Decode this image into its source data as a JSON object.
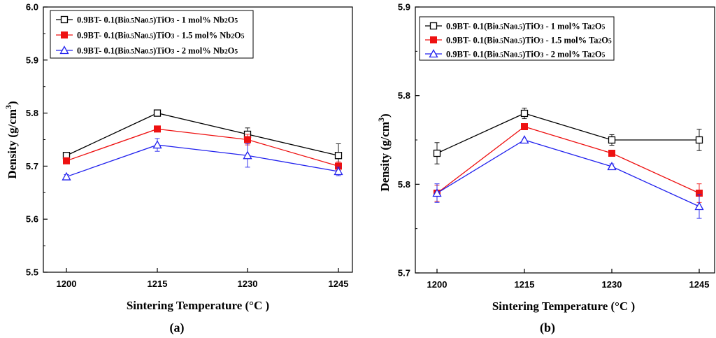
{
  "chart_data": [
    {
      "type": "line",
      "panel_label": "(a)",
      "categories": [
        "1200",
        "1215",
        "1230",
        "1245"
      ],
      "xlabel": "Sintering Temperature (°C )",
      "ylabel_main": "Density  (g/cm",
      "ylabel_sup": "3",
      "ylabel_close": ")",
      "ylim": [
        5.5,
        6.0
      ],
      "yticks": [
        "5.5",
        "5.6",
        "5.7",
        "5.8",
        "5.9",
        "6.0"
      ],
      "legend_position": "top-left",
      "series": [
        {
          "name": "0.9BT- 0.1(Bi0.5Na0.5)TiO3 - 1 mol% Nb2O5",
          "legend": {
            "pre": "0.9BT- 0.1(Bi",
            "s1": "0.5",
            "mid1": "Na",
            "s2": "0.5",
            "mid2": ")TiO",
            "s3": "3",
            "post": " - 1 mol% Nb",
            "s4": "2",
            "post2": "O",
            "s5": "5"
          },
          "color": "#000000",
          "marker": "square-open",
          "values": [
            5.72,
            5.8,
            5.76,
            5.72
          ],
          "errors": [
            0,
            0,
            0.012,
            0.022
          ]
        },
        {
          "name": "0.9BT- 0.1(Bi0.5Na0.5)TiO3 - 1.5 mol% Nb2O5",
          "legend": {
            "pre": "0.9BT- 0.1(Bi",
            "s1": "0.5",
            "mid1": "Na",
            "s2": "0.5",
            "mid2": ")TiO",
            "s3": "3",
            "post": " - 1.5 mol% Nb",
            "s4": "2",
            "post2": "O",
            "s5": "5"
          },
          "color": "#ee1111",
          "marker": "square-filled",
          "values": [
            5.71,
            5.77,
            5.75,
            5.7
          ],
          "errors": [
            0,
            0,
            0.01,
            0.008
          ]
        },
        {
          "name": "0.9BT- 0.1(Bi0.5Na0.5)TiO3 - 2 mol% Nb2O5",
          "legend": {
            "pre": "0.9BT- 0.1(Bi",
            "s1": "0.5",
            "mid1": "Na",
            "s2": "0.5",
            "mid2": ")TiO",
            "s3": "3",
            "post": " - 2 mol% Nb",
            "s4": "2",
            "post2": "O",
            "s5": "5"
          },
          "color": "#2222ee",
          "marker": "triangle-open",
          "values": [
            5.68,
            5.74,
            5.72,
            5.69
          ],
          "errors": [
            0.004,
            0.012,
            0.022,
            0.008
          ]
        }
      ]
    },
    {
      "type": "line",
      "panel_label": "(b)",
      "categories": [
        "1200",
        "1215",
        "1230",
        "1245"
      ],
      "xlabel": "Sintering Temperature (°C )",
      "ylabel_main": "Density  (g/cm",
      "ylabel_sup": "3",
      "ylabel_close": ")",
      "ylim": [
        5.7,
        5.9
      ],
      "yticks": [
        "5.7",
        "5.8",
        "5.8",
        "5.9"
      ],
      "legend_position": "top-left",
      "series": [
        {
          "name": "0.9BT- 0.1(Bi0.5Na0.5)TiO3 - 1 mol% Ta2O5",
          "legend": {
            "pre": "0.9BT- 0.1(Bi",
            "s1": "0.5",
            "mid1": "Na",
            "s2": "0.5",
            "mid2": ")TiO",
            "s3": "3",
            "post": " - 1 mol% Ta",
            "s4": "2",
            "post2": "O",
            "s5": "5"
          },
          "color": "#000000",
          "marker": "square-open",
          "values": [
            5.79,
            5.82,
            5.8,
            5.8
          ],
          "errors": [
            0.008,
            0.004,
            0.004,
            0.008
          ]
        },
        {
          "name": "0.9BT- 0.1(Bi0.5Na0.5)TiO3 - 1.5 mol% Ta2O5",
          "legend": {
            "pre": "0.9BT- 0.1(Bi",
            "s1": "0.5",
            "mid1": "Na",
            "s2": "0.5",
            "mid2": ")TiO",
            "s3": "3",
            "post": " - 1.5 mol% Ta",
            "s4": "2",
            "post2": "O",
            "s5": "5"
          },
          "color": "#ee1111",
          "marker": "square-filled",
          "values": [
            5.76,
            5.81,
            5.79,
            5.76
          ],
          "errors": [
            0.006,
            0,
            0,
            0.007
          ]
        },
        {
          "name": "0.9BT- 0.1(Bi0.5Na0.5)TiO3 - 2 mol% Ta2O5",
          "legend": {
            "pre": "0.9BT- 0.1(Bi",
            "s1": "0.5",
            "mid1": "Na",
            "s2": "0.5",
            "mid2": ")TiO",
            "s3": "3",
            "post": " - 2 mol% Ta",
            "s4": "2",
            "post2": "O",
            "s5": "5"
          },
          "color": "#2222ee",
          "marker": "triangle-open",
          "values": [
            5.76,
            5.8,
            5.78,
            5.75
          ],
          "errors": [
            0.007,
            0,
            0.002,
            0.009
          ]
        }
      ]
    }
  ]
}
